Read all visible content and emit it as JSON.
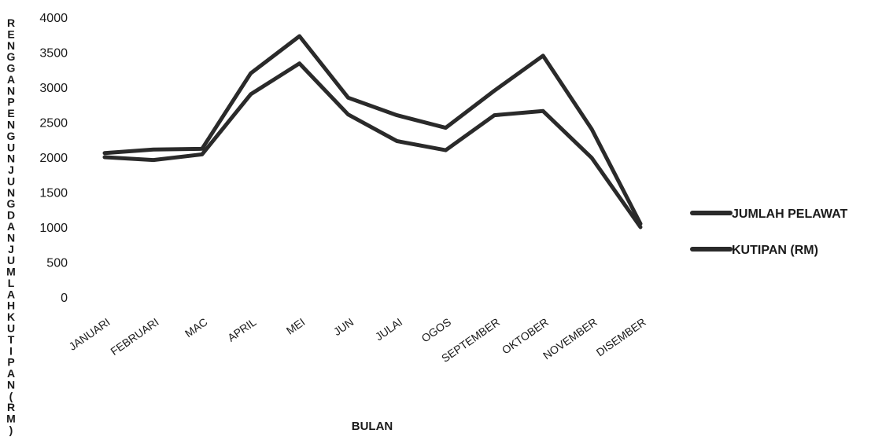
{
  "chart_data": {
    "type": "line",
    "title": "",
    "xlabel": "BULAN",
    "ylabel": "RENGGAN PENGUNJUNG DAN JUMLAH KUTIPAN (RM)",
    "ylim": [
      0,
      4000
    ],
    "yticks": [
      0,
      500,
      1000,
      1500,
      2000,
      2500,
      3000,
      3500,
      4000
    ],
    "grid": false,
    "legend_position": "right",
    "categories": [
      "JANUARI",
      "FEBRUARI",
      "MAC",
      "APRIL",
      "MEI",
      "JUN",
      "JULAI",
      "OGOS",
      "SEPTEMBER",
      "OKTOBER",
      "NOVEMBER",
      "DISEMBER"
    ],
    "series": [
      {
        "name": "JUMLAH PELAWAT",
        "color": "#2a2a2a",
        "values": [
          2060,
          2110,
          2120,
          3200,
          3730,
          2850,
          2600,
          2420,
          2950,
          3450,
          2400,
          1050
        ]
      },
      {
        "name": "KUTIPAN (RM)",
        "color": "#2a2a2a",
        "values": [
          2000,
          1960,
          2040,
          2900,
          3340,
          2610,
          2230,
          2100,
          2600,
          2660,
          1990,
          1000
        ]
      }
    ]
  }
}
